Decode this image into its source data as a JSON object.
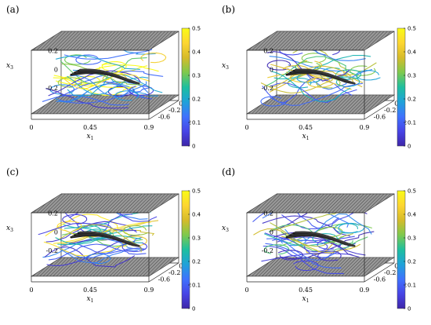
{
  "colormap": [
    "#3e26a8",
    "#4744e6",
    "#3f72fd",
    "#1fa2d9",
    "#1ebf9f",
    "#7ec94d",
    "#d6bb2a",
    "#fdd631",
    "#f9fb15"
  ],
  "panels": [
    {
      "label": "(a)",
      "seed": 11,
      "maxc": 0.36
    },
    {
      "label": "(b)",
      "seed": 29,
      "maxc": 0.26
    },
    {
      "label": "(c)",
      "seed": 47,
      "maxc": 0.28
    },
    {
      "label": "(d)",
      "seed": 83,
      "maxc": 0.22
    }
  ],
  "chart_data": [
    {
      "type": "3d-streamlines",
      "label": "(a)",
      "x1_ticks": [
        "0",
        "0.45",
        "0.9"
      ],
      "x2_ticks": [
        "0.2",
        "-0.2",
        "-0.6"
      ],
      "x3_ticks": [
        "0.2",
        "0",
        "-0.2"
      ],
      "xlabel": "x1",
      "ylabel": "x2",
      "zlabel": "x3",
      "colorbar": {
        "range": [
          0,
          0.5
        ],
        "ticks": [
          "0.5",
          "0.4",
          "0.3",
          "0.2",
          "0.1",
          "0"
        ]
      }
    },
    {
      "type": "3d-streamlines",
      "label": "(b)",
      "x1_ticks": [
        "0",
        "0.45",
        "0.9"
      ],
      "x2_ticks": [
        "0.2",
        "-0.2",
        "-0.6"
      ],
      "x3_ticks": [
        "0.2",
        "0",
        "-0.2"
      ],
      "xlabel": "x1",
      "ylabel": "x2",
      "zlabel": "x3",
      "colorbar": {
        "range": [
          0,
          0.5
        ],
        "ticks": [
          "0.5",
          "0.4",
          "0.3",
          "0.2",
          "0.1",
          "0"
        ]
      }
    },
    {
      "type": "3d-streamlines",
      "label": "(c)",
      "x1_ticks": [
        "0",
        "0.45",
        "0.9"
      ],
      "x2_ticks": [
        "0.2",
        "-0.2",
        "-0.6"
      ],
      "x3_ticks": [
        "0.2",
        "0",
        "-0.2"
      ],
      "xlabel": "x1",
      "ylabel": "x2",
      "zlabel": "x3",
      "colorbar": {
        "range": [
          0,
          0.5
        ],
        "ticks": [
          "0.5",
          "0.4",
          "0.3",
          "0.2",
          "0.1",
          "0"
        ]
      }
    },
    {
      "type": "3d-streamlines",
      "label": "(d)",
      "x1_ticks": [
        "0",
        "0.45",
        "0.9"
      ],
      "x2_ticks": [
        "0.2",
        "-0.2",
        "-0.6"
      ],
      "x3_ticks": [
        "0.2",
        "0",
        "-0.2"
      ],
      "xlabel": "x1",
      "ylabel": "x2",
      "zlabel": "x3",
      "colorbar": {
        "range": [
          0,
          0.5
        ],
        "ticks": [
          "0.5",
          "0.4",
          "0.3",
          "0.2",
          "0.1",
          "0"
        ]
      }
    }
  ]
}
